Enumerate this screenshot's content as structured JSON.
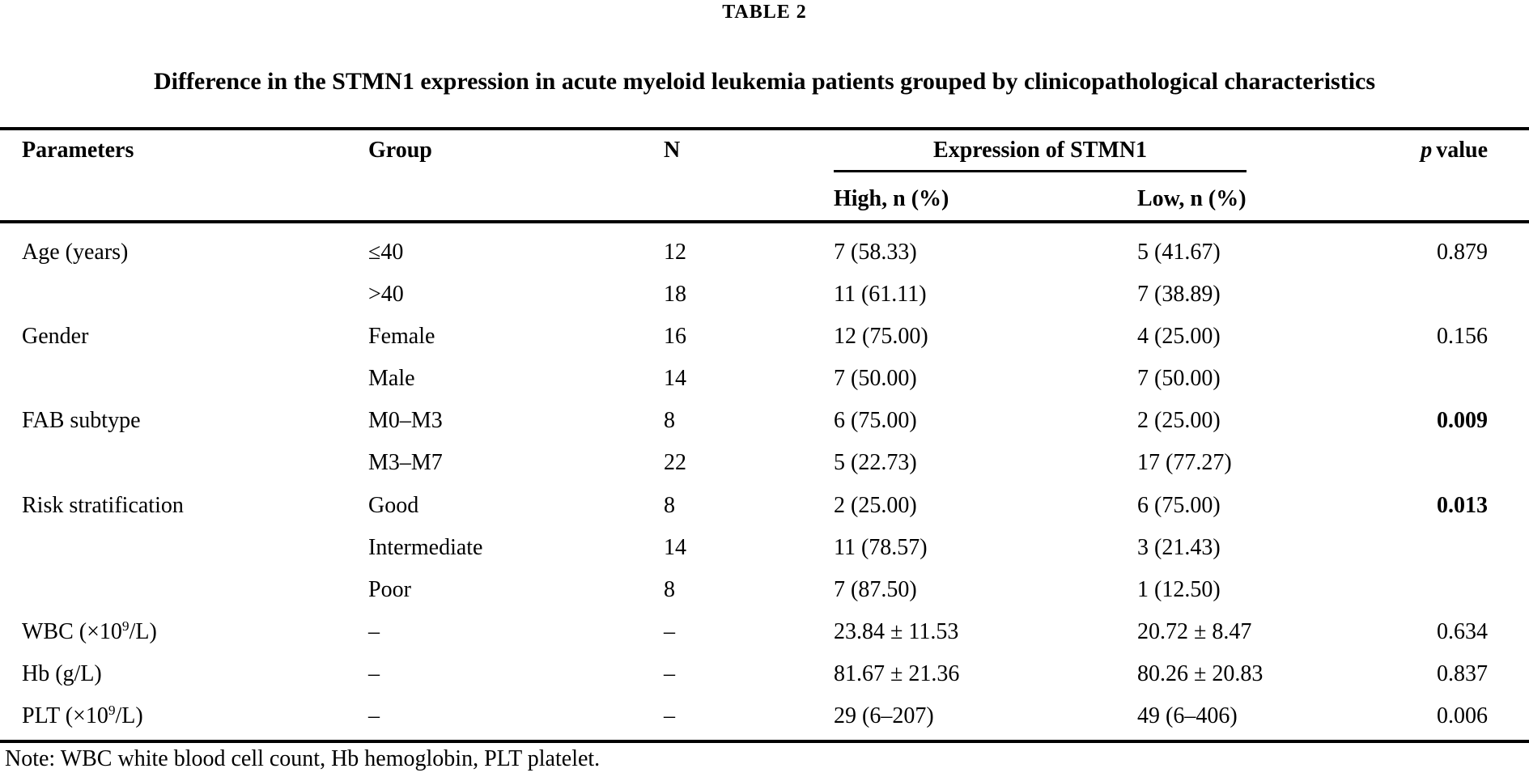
{
  "page": {
    "table_label": "TABLE 2",
    "title": "Difference in the STMN1 expression in acute myeloid leukemia patients grouped by clinicopathological characteristics",
    "note": "Note: WBC white blood cell count, Hb hemoglobin, PLT platelet."
  },
  "table": {
    "headers": {
      "parameters": "Parameters",
      "group": "Group",
      "n": "N",
      "expression_group": "Expression of STMN1",
      "high": "High, n (%)",
      "low": "Low, n (%)",
      "p_italic": "p",
      "p_rest": "value"
    },
    "rows": [
      {
        "parameter": [
          {
            "t": "Age (years)"
          }
        ],
        "group": "≤40",
        "n": "12",
        "high": "7 (58.33)",
        "low": "5 (41.67)",
        "p": "0.879",
        "p_bold": false
      },
      {
        "parameter": [],
        "group": ">40",
        "n": "18",
        "high": "11 (61.11)",
        "low": "7 (38.89)",
        "p": "",
        "p_bold": false
      },
      {
        "parameter": [
          {
            "t": "Gender"
          }
        ],
        "group": "Female",
        "n": "16",
        "high": "12 (75.00)",
        "low": "4 (25.00)",
        "p": "0.156",
        "p_bold": false
      },
      {
        "parameter": [],
        "group": "Male",
        "n": "14",
        "high": "7 (50.00)",
        "low": "7 (50.00)",
        "p": "",
        "p_bold": false
      },
      {
        "parameter": [
          {
            "t": "FAB subtype"
          }
        ],
        "group": "M0–M3",
        "n": "8",
        "high": "6 (75.00)",
        "low": "2 (25.00)",
        "p": "0.009",
        "p_bold": true
      },
      {
        "parameter": [],
        "group": "M3–M7",
        "n": "22",
        "high": "5 (22.73)",
        "low": "17 (77.27)",
        "p": "",
        "p_bold": false
      },
      {
        "parameter": [
          {
            "t": "Risk stratification"
          }
        ],
        "group": "Good",
        "n": "8",
        "high": "2 (25.00)",
        "low": "6 (75.00)",
        "p": "0.013",
        "p_bold": true
      },
      {
        "parameter": [],
        "group": "Intermediate",
        "n": "14",
        "high": "11 (78.57)",
        "low": "3 (21.43)",
        "p": "",
        "p_bold": false
      },
      {
        "parameter": [],
        "group": "Poor",
        "n": "8",
        "high": "7 (87.50)",
        "low": "1 (12.50)",
        "p": "",
        "p_bold": false
      },
      {
        "parameter": [
          {
            "t": "WBC (×10"
          },
          {
            "t": "9",
            "sup": true
          },
          {
            "t": "/L)"
          }
        ],
        "group": "–",
        "n": "–",
        "high": "23.84 ± 11.53",
        "low": "20.72 ± 8.47",
        "p": "0.634",
        "p_bold": false
      },
      {
        "parameter": [
          {
            "t": "Hb (g/L)"
          }
        ],
        "group": "–",
        "n": "–",
        "high": "81.67 ± 21.36",
        "low": "80.26 ± 20.83",
        "p": "0.837",
        "p_bold": false
      },
      {
        "parameter": [
          {
            "t": "PLT (×10"
          },
          {
            "t": "9",
            "sup": true
          },
          {
            "t": "/L)"
          }
        ],
        "group": "–",
        "n": "–",
        "high": "29 (6–207)",
        "low": "49 (6–406)",
        "p": "0.006",
        "p_bold": false
      }
    ]
  }
}
